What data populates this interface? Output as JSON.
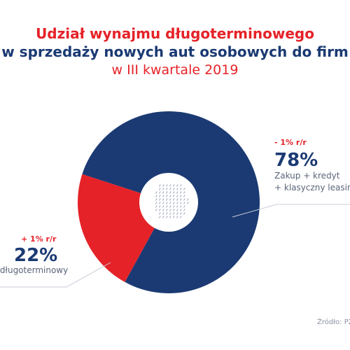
{
  "title_line1": "Udział wynajmu długoterminowego",
  "title_line2": "w sprzedaży nowych aut osobowych do firm",
  "title_line3": "w III kwartale 2019",
  "colors": {
    "dark_blue": "#1b3a73",
    "red": "#e52228"
  },
  "chart_data": {
    "type": "pie",
    "title": "Udział wynajmu długoterminowego w sprzedaży nowych aut osobowych do firm w III kwartale 2019",
    "slices": [
      {
        "label_lines": [
          "Zakup + kredyt",
          "+ klasyczny leasing"
        ],
        "value": 78,
        "value_label": "78%",
        "change_label": "- 1% r/r",
        "color": "#1b3a73"
      },
      {
        "label_lines": [
          "Wynajem długoterminowy"
        ],
        "value": 22,
        "value_label": "22%",
        "change_label": "+ 1% r/r",
        "color": "#e52228"
      }
    ]
  },
  "source": "Źródło: PZWLP"
}
